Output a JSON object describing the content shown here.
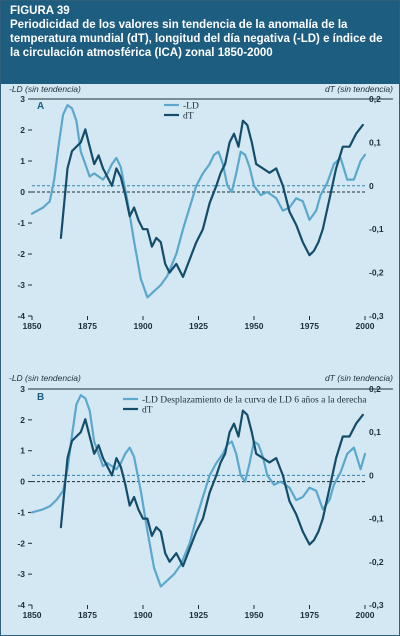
{
  "figure": {
    "number": "FIGURA 39",
    "title": "Periodicidad de los valores sin tendencia de la anomalía de la temperatura mundial (dT), longitud del día negativa (-LD) e índice de la circulación atmosférica (ICA) zonal 1850-2000"
  },
  "colors": {
    "ld": "#5ca7cc",
    "dt": "#144d6a",
    "dashed_left": "#1b2f3a",
    "dashed_right": "#2e86b4",
    "background": "#d4e8f3",
    "header": "#1d5e80"
  },
  "chart_data": [
    {
      "type": "line",
      "panel_label": "A",
      "ylabel_left": "-LD (sin tendencia)",
      "ylabel_right": "dT (sin tendencia)",
      "xlim": [
        1850,
        2000
      ],
      "xticks": [
        "1850",
        "1875",
        "1900",
        "1925",
        "1950",
        "1975",
        "2000"
      ],
      "ylim_left": [
        -4,
        3
      ],
      "yticks_left": [
        "3",
        "2",
        "1",
        "0",
        "-1",
        "-2",
        "-3",
        "-4"
      ],
      "ylim_right": [
        -0.3,
        0.2
      ],
      "yticks_right": [
        "0,2",
        "0,1",
        "0",
        "-0,1",
        "-0,2",
        "-0,3"
      ],
      "legend": [
        "-LD",
        "dT"
      ],
      "series": [
        {
          "name": "-LD",
          "axis": "left",
          "x": [
            1850,
            1855,
            1858,
            1860,
            1862,
            1864,
            1866,
            1868,
            1870,
            1872,
            1874,
            1876,
            1878,
            1880,
            1882,
            1884,
            1886,
            1888,
            1890,
            1893,
            1896,
            1899,
            1902,
            1905,
            1908,
            1911,
            1915,
            1918,
            1921,
            1924,
            1927,
            1930,
            1932,
            1934,
            1936,
            1938,
            1940,
            1942,
            1944,
            1946,
            1948,
            1950,
            1953,
            1956,
            1960,
            1963,
            1966,
            1969,
            1972,
            1975,
            1978,
            1980,
            1983,
            1986,
            1989,
            1992,
            1995,
            1998,
            2000
          ],
          "y": [
            -0.7,
            -0.5,
            -0.3,
            0.4,
            1.5,
            2.5,
            2.8,
            2.7,
            2.3,
            1.3,
            0.9,
            0.5,
            0.6,
            0.5,
            0.4,
            0.6,
            0.9,
            1.1,
            0.8,
            -0.3,
            -1.6,
            -2.8,
            -3.4,
            -3.2,
            -3.0,
            -2.7,
            -2.0,
            -1.2,
            -0.5,
            0.2,
            0.6,
            0.9,
            1.2,
            1.3,
            0.9,
            0.2,
            0.0,
            0.6,
            1.3,
            1.2,
            0.8,
            0.2,
            -0.1,
            0.0,
            -0.2,
            -0.6,
            -0.5,
            -0.2,
            -0.3,
            -0.9,
            -0.6,
            -0.1,
            0.3,
            0.9,
            1.1,
            0.4,
            0.4,
            1.0,
            1.2
          ]
        },
        {
          "name": "dT",
          "axis": "right",
          "x": [
            1863,
            1866,
            1868,
            1870,
            1872,
            1874,
            1876,
            1878,
            1880,
            1882,
            1884,
            1886,
            1888,
            1890,
            1892,
            1894,
            1896,
            1898,
            1900,
            1902,
            1904,
            1906,
            1908,
            1910,
            1912,
            1915,
            1918,
            1921,
            1924,
            1927,
            1930,
            1933,
            1935,
            1937,
            1939,
            1941,
            1943,
            1945,
            1947,
            1949,
            1951,
            1954,
            1957,
            1960,
            1963,
            1966,
            1969,
            1972,
            1975,
            1977,
            1979,
            1981,
            1984,
            1987,
            1990,
            1993,
            1996,
            1999
          ],
          "y": [
            -0.12,
            0.04,
            0.08,
            0.09,
            0.1,
            0.13,
            0.09,
            0.05,
            0.07,
            0.04,
            0.02,
            0.0,
            0.04,
            0.02,
            -0.02,
            -0.07,
            -0.05,
            -0.08,
            -0.1,
            -0.1,
            -0.14,
            -0.12,
            -0.13,
            -0.18,
            -0.2,
            -0.18,
            -0.21,
            -0.17,
            -0.13,
            -0.1,
            -0.04,
            0.0,
            0.03,
            0.05,
            0.1,
            0.12,
            0.09,
            0.15,
            0.14,
            0.1,
            0.05,
            0.04,
            0.03,
            0.04,
            0.0,
            -0.06,
            -0.09,
            -0.13,
            -0.16,
            -0.15,
            -0.13,
            -0.1,
            -0.03,
            0.04,
            0.09,
            0.09,
            0.12,
            0.14
          ]
        }
      ]
    },
    {
      "type": "line",
      "panel_label": "B",
      "ylabel_left": "-LD (sin tendencia)",
      "ylabel_right": "dT (sin tendencia)",
      "xlim": [
        1850,
        2000
      ],
      "xticks": [
        "1850",
        "1875",
        "1900",
        "1925",
        "1950",
        "1975",
        "2000"
      ],
      "ylim_left": [
        -4,
        3
      ],
      "yticks_left": [
        "3",
        "2",
        "1",
        "0",
        "-1",
        "-2",
        "-3",
        "-4"
      ],
      "ylim_right": [
        -0.3,
        0.2
      ],
      "yticks_right": [
        "0,2",
        "0,1",
        "0",
        "-0,1",
        "-0,2",
        "-0,3"
      ],
      "legend": [
        "-LD Desplazamiento de la curva de LD 6 años a la derecha",
        "dT"
      ],
      "series": [
        {
          "name": "-LD Desplazamiento de la curva de LD 6 años a la derecha",
          "axis": "left",
          "x": [
            1850,
            1855,
            1858,
            1861,
            1864,
            1866,
            1868,
            1870,
            1872,
            1874,
            1876,
            1878,
            1880,
            1882,
            1884,
            1886,
            1888,
            1890,
            1892,
            1894,
            1896,
            1899,
            1902,
            1905,
            1908,
            1911,
            1914,
            1917,
            1921,
            1924,
            1927,
            1930,
            1933,
            1936,
            1938,
            1940,
            1942,
            1944,
            1946,
            1948,
            1950,
            1952,
            1954,
            1956,
            1959,
            1962,
            1966,
            1969,
            1972,
            1975,
            1978,
            1981,
            1984,
            1986,
            1989,
            1992,
            1995,
            1998,
            2000
          ],
          "y": [
            -1.0,
            -0.9,
            -0.8,
            -0.6,
            -0.3,
            0.4,
            1.5,
            2.5,
            2.8,
            2.7,
            2.3,
            1.3,
            0.9,
            0.5,
            0.6,
            0.5,
            0.4,
            0.6,
            0.9,
            1.1,
            0.8,
            -0.3,
            -1.6,
            -2.8,
            -3.4,
            -3.2,
            -3.0,
            -2.7,
            -2.0,
            -1.2,
            -0.5,
            0.2,
            0.6,
            0.9,
            1.2,
            1.3,
            0.9,
            0.2,
            0.0,
            0.6,
            1.3,
            1.2,
            0.8,
            0.2,
            -0.1,
            0.0,
            -0.2,
            -0.6,
            -0.5,
            -0.2,
            -0.3,
            -0.9,
            -0.6,
            -0.1,
            0.3,
            0.9,
            1.1,
            0.4,
            0.9
          ]
        },
        {
          "name": "dT",
          "axis": "right",
          "x": [
            1863,
            1866,
            1868,
            1870,
            1872,
            1874,
            1876,
            1878,
            1880,
            1882,
            1884,
            1886,
            1888,
            1890,
            1892,
            1894,
            1896,
            1898,
            1900,
            1902,
            1904,
            1906,
            1908,
            1910,
            1912,
            1915,
            1918,
            1921,
            1924,
            1927,
            1930,
            1933,
            1935,
            1937,
            1939,
            1941,
            1943,
            1945,
            1947,
            1949,
            1951,
            1954,
            1957,
            1960,
            1963,
            1966,
            1969,
            1972,
            1975,
            1977,
            1979,
            1981,
            1984,
            1987,
            1990,
            1993,
            1996,
            1999
          ],
          "y": [
            -0.12,
            0.04,
            0.08,
            0.09,
            0.1,
            0.13,
            0.09,
            0.05,
            0.07,
            0.04,
            0.02,
            0.0,
            0.04,
            0.02,
            -0.02,
            -0.07,
            -0.05,
            -0.08,
            -0.1,
            -0.1,
            -0.14,
            -0.12,
            -0.13,
            -0.18,
            -0.2,
            -0.18,
            -0.21,
            -0.17,
            -0.13,
            -0.1,
            -0.04,
            0.0,
            0.03,
            0.05,
            0.1,
            0.12,
            0.09,
            0.15,
            0.14,
            0.1,
            0.05,
            0.04,
            0.03,
            0.04,
            0.0,
            -0.06,
            -0.09,
            -0.13,
            -0.16,
            -0.15,
            -0.13,
            -0.1,
            -0.03,
            0.04,
            0.09,
            0.09,
            0.12,
            0.14
          ]
        }
      ]
    }
  ]
}
